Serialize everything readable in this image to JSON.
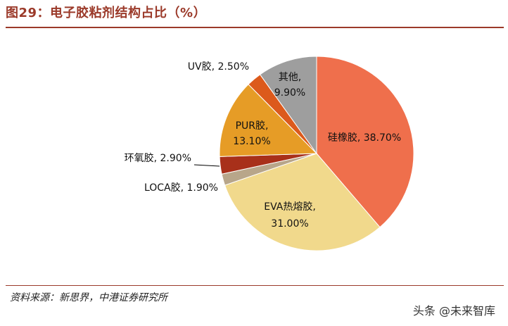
{
  "header": {
    "title": "图29：电子胶粘剂结构占比（%）"
  },
  "footer": {
    "source": "资料来源：新思界，中港证券研究所",
    "watermark": "头条 @未来智库"
  },
  "colors": {
    "accent": "#9b3a2a"
  },
  "chart_data": {
    "type": "pie",
    "title": "",
    "start_angle_deg": 0,
    "direction": "clockwise",
    "slices": [
      {
        "name": "硅橡胶",
        "value": 38.7,
        "label": "硅橡胶, 38.70%",
        "color": "#ef6f4c"
      },
      {
        "name": "EVA热熔胶",
        "value": 31.0,
        "label": "EVA热熔胶,\n31.00%",
        "color": "#f1d98c"
      },
      {
        "name": "LOCA胶",
        "value": 1.9,
        "label": "LOCA胶, 1.90%",
        "color": "#b8a68a"
      },
      {
        "name": "环氧胶",
        "value": 2.9,
        "label": "环氧胶, 2.90%",
        "color": "#a8301a"
      },
      {
        "name": "PUR胶",
        "value": 13.1,
        "label": "PUR胶,\n13.10%",
        "color": "#e69c26"
      },
      {
        "name": "UV胶",
        "value": 2.5,
        "label": "UV胶, 2.50%",
        "color": "#dc5a1c"
      },
      {
        "name": "其他",
        "value": 9.9,
        "label": "其他,\n9.90%",
        "color": "#9e9e9e"
      }
    ]
  }
}
